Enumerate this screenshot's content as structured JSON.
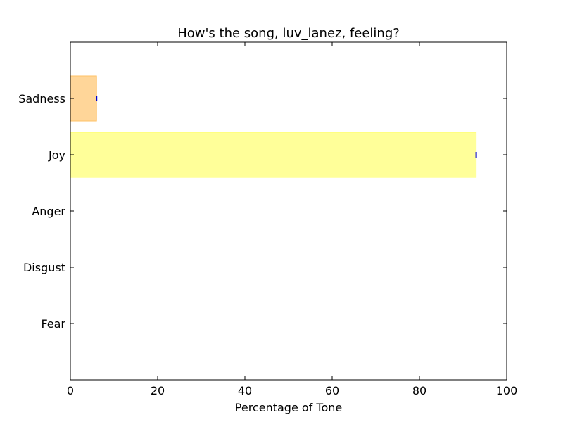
{
  "chart_data": {
    "type": "bar",
    "orientation": "horizontal",
    "title": "How's the song, luv_lanez, feeling?",
    "xlabel": "Percentage of Tone",
    "ylabel": "",
    "xlim": [
      0,
      100
    ],
    "x_ticks": [
      "0",
      "20",
      "40",
      "60",
      "80",
      "100"
    ],
    "categories": [
      "Sadness",
      "Joy",
      "Anger",
      "Disgust",
      "Fear"
    ],
    "values": [
      6,
      93,
      0,
      0,
      0
    ],
    "colors": [
      "#ffd699",
      "#ffff99",
      "#ff9999",
      "#99ff99",
      "#cc99ff"
    ],
    "edge_colors": [
      "#ffc266",
      "#ffff66",
      "#ff6666",
      "#66ff66",
      "#b366ff"
    ],
    "error_marker_color": "#0000cc",
    "grid": false,
    "legend": "none"
  }
}
